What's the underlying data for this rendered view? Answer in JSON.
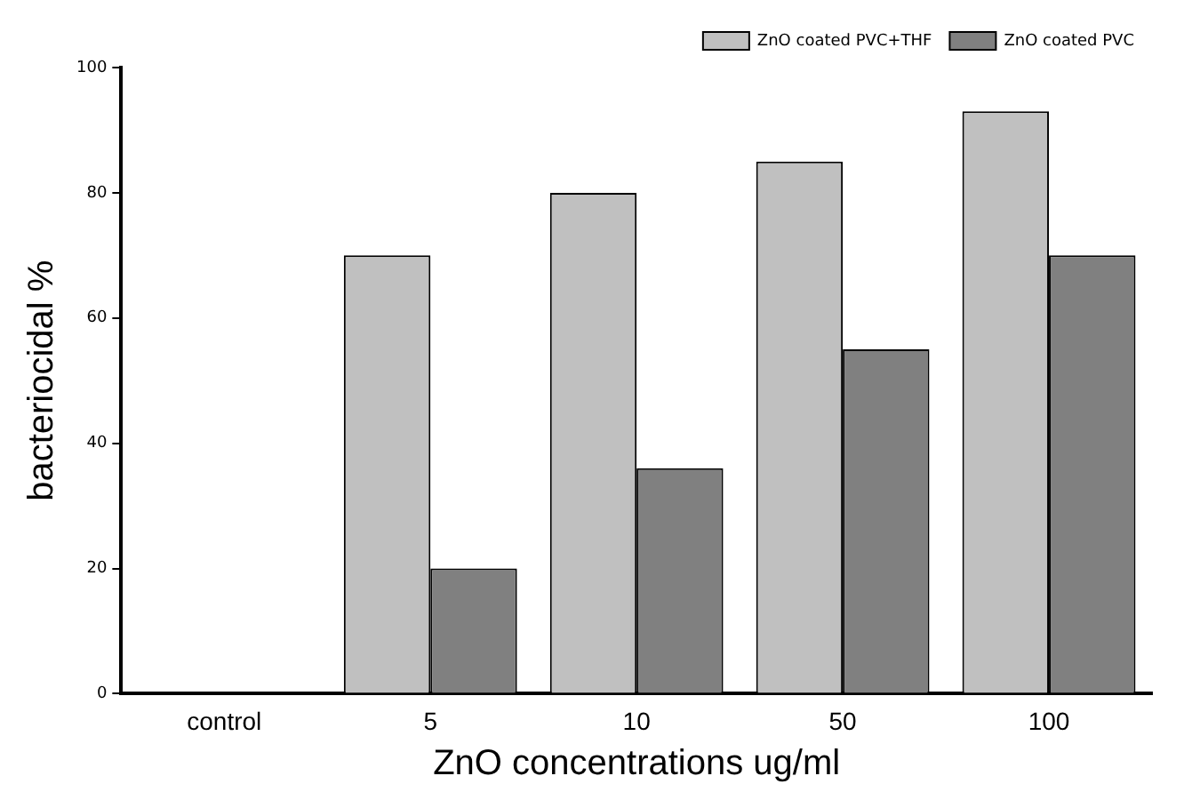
{
  "chart_data": {
    "type": "bar",
    "xlabel": "ZnO concentrations ug/ml",
    "ylabel": "bacteriocidal %",
    "categories": [
      "control",
      "5",
      "10",
      "50",
      "100"
    ],
    "series": [
      {
        "name": "ZnO coated PVC+THF",
        "color": "#c0c0c0",
        "values": [
          0,
          70,
          80,
          85,
          93
        ]
      },
      {
        "name": "ZnO coated PVC",
        "color": "#808080",
        "values": [
          0,
          20,
          36,
          55,
          70
        ]
      }
    ],
    "ylim": [
      0,
      100
    ],
    "yticks": [
      0,
      20,
      40,
      60,
      80,
      100
    ],
    "grid": false,
    "legend": "top right"
  }
}
